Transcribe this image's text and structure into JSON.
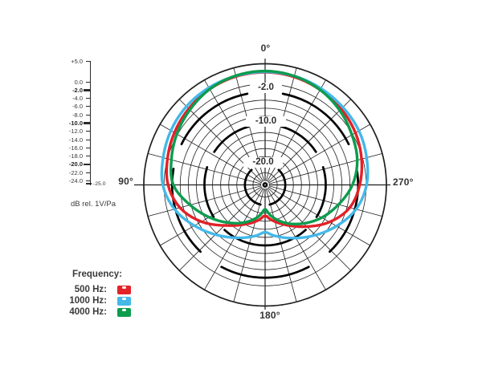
{
  "chart_data": {
    "type": "line",
    "subtype": "polar",
    "description": "Microphone polar pattern: sensitivity vs angle at three frequencies",
    "angle_convention": {
      "0": "top",
      "90": "left",
      "180": "bottom",
      "270": "right"
    },
    "spoke_step_deg": 15,
    "radial_axis": {
      "unit_label": "dB rel. 1V/Pa",
      "outer_db": 5,
      "center_db": -25,
      "ring_step_db": 2,
      "bold_rings_db": [
        -2,
        -10,
        -20
      ],
      "ring_labels": [
        {
          "db": -2,
          "text": "-2.0"
        },
        {
          "db": -10,
          "text": "-10.0"
        },
        {
          "db": -20,
          "text": "-20.0"
        }
      ],
      "scale_ticks": [
        {
          "db": 5,
          "label": "+5.0",
          "bold": false
        },
        {
          "db": 0,
          "label": "0.0",
          "bold": false
        },
        {
          "db": -2,
          "label": "-2.0",
          "bold": true
        },
        {
          "db": -4,
          "label": "-4.0",
          "bold": false
        },
        {
          "db": -6,
          "label": "-6.0",
          "bold": false
        },
        {
          "db": -8,
          "label": "-8.0",
          "bold": false
        },
        {
          "db": -10,
          "label": "-10.0",
          "bold": true
        },
        {
          "db": -12,
          "label": "-12.0",
          "bold": false
        },
        {
          "db": -14,
          "label": "-14.0",
          "bold": false
        },
        {
          "db": -16,
          "label": "-16.0",
          "bold": false
        },
        {
          "db": -18,
          "label": "-18.0",
          "bold": false
        },
        {
          "db": -20,
          "label": "-20.0",
          "bold": true
        },
        {
          "db": -22,
          "label": "-22.0",
          "bold": false
        },
        {
          "db": -24,
          "label": "-24.0",
          "bold": false
        }
      ],
      "end_tick": {
        "db": -25,
        "label": "-25.0"
      }
    },
    "angle_labels": [
      {
        "deg": 0,
        "text": "0°"
      },
      {
        "deg": 90,
        "text": "90°"
      },
      {
        "deg": 180,
        "text": "180°"
      },
      {
        "deg": 270,
        "text": "270°"
      }
    ],
    "angles_deg": [
      0,
      15,
      30,
      45,
      60,
      75,
      90,
      105,
      120,
      135,
      150,
      165,
      180,
      195,
      210,
      225,
      240,
      255,
      270,
      285,
      300,
      315,
      330,
      345
    ],
    "series": [
      {
        "name": "500 Hz",
        "color": "#e22128",
        "values_db": [
          2.9,
          2.8,
          2.4,
          1.7,
          0.9,
          0.0,
          -1.0,
          -3.2,
          -6.8,
          -10.8,
          -13.6,
          -15.6,
          -17.4,
          -15.6,
          -13.4,
          -10.4,
          -6.6,
          -3.3,
          -1.6,
          -0.3,
          0.8,
          1.6,
          2.2,
          2.7
        ]
      },
      {
        "name": "1000 Hz",
        "color": "#44b8e9",
        "values_db": [
          3.0,
          2.95,
          2.8,
          2.5,
          1.9,
          1.1,
          0.3,
          -1.8,
          -4.8,
          -7.6,
          -9.9,
          -11.7,
          -13.3,
          -11.7,
          -9.8,
          -7.4,
          -4.6,
          -1.7,
          0.1,
          1.0,
          1.8,
          2.2,
          2.6,
          2.9
        ]
      },
      {
        "name": "4000 Hz",
        "color": "#0c9c4e",
        "values_db": [
          3.2,
          3.0,
          2.4,
          1.3,
          0.2,
          -1.0,
          -2.3,
          -5.8,
          -9.0,
          -11.8,
          -14.2,
          -16.5,
          -19.0,
          -16.5,
          -14.0,
          -11.5,
          -8.8,
          -6.2,
          -3.4,
          -1.4,
          -0.2,
          1.1,
          2.2,
          2.9
        ]
      }
    ],
    "legend": {
      "title": "Frequency:",
      "items": [
        {
          "label": "500 Hz:",
          "color": "#e22128"
        },
        {
          "label": "1000 Hz:",
          "color": "#44b8e9"
        },
        {
          "label": "4000 Hz:",
          "color": "#0c9c4e"
        }
      ]
    }
  }
}
